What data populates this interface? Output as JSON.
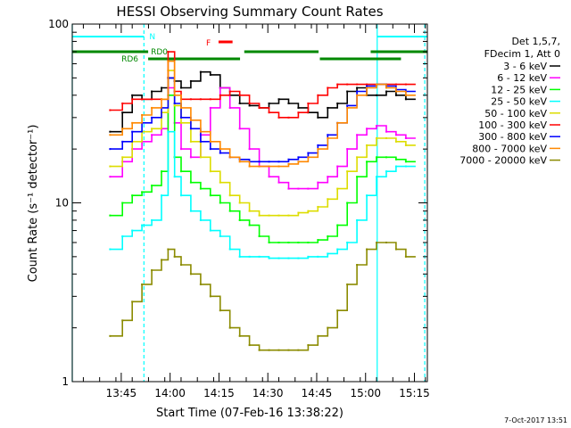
{
  "chart_data": {
    "type": "line",
    "title": "HESSI Observing Summary Count Rates",
    "xlabel": "Start Time (07-Feb-16 13:38:22)",
    "ylabel": "Count Rate (s⁻¹ detector⁻¹)",
    "ylog": true,
    "ylim": [
      1,
      100
    ],
    "xlim_minutes_after_13_38_22": [
      -8.4,
      100.6
    ],
    "x_ticks": [
      "13:45",
      "14:00",
      "14:15",
      "14:30",
      "14:45",
      "15:00",
      "15:15"
    ],
    "y_ticks": [
      "1",
      "10",
      "100"
    ],
    "grid": false,
    "legend_position": "right",
    "legend_header": [
      "Det 1,5,7,",
      "FDecim 1, Att 0"
    ],
    "footer_timestamp": "7-Oct-2017 13:51",
    "flags": [
      {
        "label": "N",
        "color": "#00ffff",
        "intervals": [
          [
            -8.4,
            13.6
          ],
          [
            85.2,
            100.6
          ]
        ]
      },
      {
        "label": "F",
        "color": "#ff0000",
        "intervals": [
          [
            36.5,
            40.8
          ]
        ]
      },
      {
        "label": "RD0",
        "color": "#008800",
        "intervals": [
          [
            -8.4,
            14.9
          ],
          [
            44.4,
            67.2
          ],
          [
            83.2,
            100.6
          ]
        ]
      },
      {
        "label": "RD6",
        "color": "#008800",
        "intervals": [
          [
            14.9,
            43.1
          ],
          [
            67.6,
            92.5
          ]
        ]
      }
    ],
    "vlines": [
      {
        "color": "#00ffff",
        "style": "solid",
        "x": -8.4
      },
      {
        "color": "#00ffff",
        "style": "dashed",
        "x": 13.6
      },
      {
        "color": "#00ffff",
        "style": "solid",
        "x": 85.2
      },
      {
        "color": "#00ffff",
        "style": "dashed",
        "x": 99.8
      }
    ],
    "x": [
      3.2,
      7,
      10,
      13,
      16,
      19,
      21,
      23,
      25,
      28,
      31,
      34,
      37,
      40,
      43,
      46,
      49,
      52,
      55,
      58,
      61,
      64,
      67,
      70,
      73,
      76,
      79,
      82,
      85,
      88,
      91,
      94
    ],
    "series": [
      {
        "name": "3 - 6 keV",
        "color": "#000000",
        "values": [
          25,
          32,
          40,
          38,
          42,
          44,
          50,
          48,
          44,
          48,
          54,
          52,
          44,
          40,
          36,
          35,
          34,
          36,
          38,
          36,
          34,
          32,
          30,
          34,
          36,
          42,
          44,
          40,
          40,
          42,
          40,
          38
        ]
      },
      {
        "name": "6 - 12 keV",
        "color": "#ff00ff",
        "values": [
          14,
          17,
          20,
          22,
          24,
          26,
          44,
          28,
          20,
          18,
          24,
          34,
          44,
          34,
          26,
          20,
          16,
          14,
          13,
          12,
          12,
          12,
          13,
          14,
          16,
          20,
          24,
          26,
          27,
          25,
          24,
          23
        ]
      },
      {
        "name": "12 - 25 keV",
        "color": "#00ff00",
        "values": [
          8.5,
          10,
          11,
          11.5,
          12.5,
          15,
          40,
          18,
          15,
          13,
          12,
          11,
          10,
          9,
          8,
          7.5,
          6.5,
          6,
          6,
          6,
          6,
          6,
          6.2,
          6.5,
          7.5,
          10,
          14,
          17,
          18,
          18,
          17.5,
          17
        ]
      },
      {
        "name": "25 - 50 keV",
        "color": "#00ffff",
        "values": [
          5.5,
          6.5,
          7,
          7.5,
          8,
          11,
          25,
          14,
          11,
          9,
          8,
          7,
          6.5,
          5.5,
          5,
          5,
          5,
          4.9,
          4.9,
          4.9,
          4.9,
          5,
          5,
          5.2,
          5.5,
          6,
          8,
          11,
          14,
          15,
          16,
          16
        ]
      },
      {
        "name": "50 - 100 keV",
        "color": "#dddd00",
        "values": [
          16,
          18,
          22,
          25,
          26,
          32,
          55,
          35,
          28,
          22,
          18,
          15,
          13,
          11,
          10,
          9,
          8.5,
          8.5,
          8.5,
          8.5,
          8.8,
          9,
          9.5,
          10.5,
          12,
          15,
          18,
          21,
          23,
          23,
          22,
          21
        ]
      },
      {
        "name": "100 - 300 keV",
        "color": "#ff0000",
        "values": [
          33,
          36,
          38,
          38,
          38,
          38,
          70,
          42,
          38,
          38,
          38,
          38,
          40,
          42,
          40,
          36,
          34,
          32,
          30,
          30,
          32,
          36,
          40,
          44,
          46,
          46,
          46,
          46,
          46,
          46,
          46,
          46
        ]
      },
      {
        "name": "300 - 800 keV",
        "color": "#0000ff",
        "values": [
          20,
          22,
          25,
          28,
          30,
          34,
          50,
          36,
          30,
          26,
          22,
          20,
          19,
          18,
          17.5,
          17,
          17,
          17,
          17,
          17.5,
          18,
          19,
          21,
          24,
          28,
          35,
          42,
          45,
          46,
          45,
          43,
          42
        ]
      },
      {
        "name": "800 - 7000 keV",
        "color": "#ff8800",
        "values": [
          24,
          26,
          28,
          31,
          34,
          38,
          62,
          40,
          34,
          29,
          25,
          22,
          20,
          18,
          17,
          16,
          16,
          16,
          16,
          16.5,
          17,
          18,
          20,
          23,
          28,
          34,
          40,
          44,
          46,
          44,
          42,
          40
        ]
      },
      {
        "name": "7000 - 20000 keV",
        "color": "#8b8b00",
        "values": [
          1.8,
          2.2,
          2.8,
          3.5,
          4.2,
          4.8,
          5.5,
          5.0,
          4.5,
          4.0,
          3.5,
          3.0,
          2.5,
          2.0,
          1.8,
          1.6,
          1.5,
          1.5,
          1.5,
          1.5,
          1.5,
          1.6,
          1.8,
          2.0,
          2.5,
          3.5,
          4.5,
          5.5,
          6.0,
          6.0,
          5.5,
          5.0
        ]
      }
    ]
  }
}
